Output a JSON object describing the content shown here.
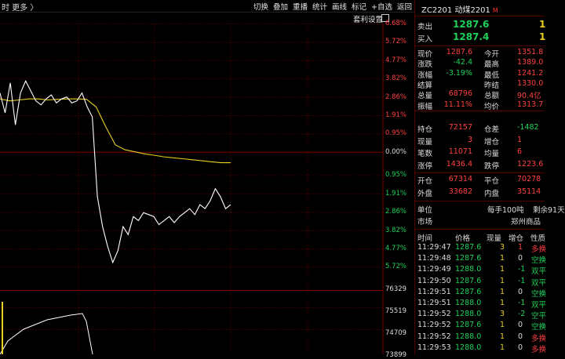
{
  "topbar": {
    "left_text": "时  更多 〉",
    "tools": [
      "切换",
      "叠加",
      "重播",
      "统计",
      "画线",
      "标记",
      "+自选",
      "返回"
    ]
  },
  "subbar": {
    "button": "套利设置"
  },
  "axis_labels": [
    "6.68%",
    "5.72%",
    "4.77%",
    "3.82%",
    "2.86%",
    "1.91%",
    "0.95%",
    "0.00%",
    "0.95%",
    "1.91%",
    "2.86%",
    "3.82%",
    "4.77%",
    "5.72%"
  ],
  "volume_labels": [
    "76329",
    "75519",
    "74709",
    "73899"
  ],
  "chart_data": {
    "type": "line",
    "series": [
      {
        "values": [
          3.2,
          2.2,
          3.7,
          1.6,
          3.2,
          3.8,
          3.3,
          2.8,
          2.6,
          2.9,
          3.1,
          2.7,
          2.9,
          3.0,
          2.7,
          2.8,
          3.2,
          2.5,
          2.0,
          -2.0,
          -3.5,
          -4.5,
          -5.3,
          -4.7,
          -3.5,
          -3.9,
          -3.0,
          -3.2,
          -2.8,
          -2.9,
          -3.0,
          -3.4,
          -3.2,
          -3.0,
          -3.3,
          -3.0,
          -2.8,
          -2.6,
          -2.9,
          -2.4,
          -2.6,
          -2.2,
          -1.6,
          -2.0,
          -2.6,
          -2.4
        ]
      },
      {
        "values": [
          2.9,
          2.8,
          2.85,
          2.9,
          2.9,
          2.85,
          2.88,
          2.9,
          2.9,
          2.88,
          2.5,
          1.5,
          0.6,
          0.35,
          0.25,
          0.15,
          0.08,
          0.0,
          -0.05,
          -0.1,
          -0.15,
          -0.2,
          -0.25,
          -0.3,
          -0.3
        ]
      }
    ],
    "ylim": [
      -6.68,
      6.68
    ]
  },
  "quote": {
    "title": "ZC2201 动煤2201",
    "title_mark": "M",
    "sell_label": "卖出",
    "sell_price": "1287.6",
    "sell_vol": "1",
    "buy_label": "买入",
    "buy_price": "1287.4",
    "buy_vol": "1",
    "rows": [
      {
        "k1": "现价",
        "v1": "1287.6",
        "k2": "今开",
        "v2": "1351.8"
      },
      {
        "k1": "涨跌",
        "v1": "-42.4",
        "k2": "最高",
        "v2": "1389.0"
      },
      {
        "k1": "涨幅",
        "v1": "-3.19%",
        "k2": "最低",
        "v2": "1241.2"
      },
      {
        "k1": "结算",
        "v1": "",
        "k2": "昨结",
        "v2": "1330.0"
      },
      {
        "k1": "总量",
        "v1": "68796",
        "k2": "总额",
        "v2": "90.4亿"
      },
      {
        "k1": "振幅",
        "v1": "11.11%",
        "k2": "均价",
        "v2": "1313.7"
      }
    ],
    "rows2": [
      {
        "k1": "持仓",
        "v1": "72157",
        "k2": "仓差",
        "v2": "-1482"
      },
      {
        "k1": "现量",
        "v1": "3",
        "k2": "增仓",
        "v2": "1"
      },
      {
        "k1": "笔数",
        "v1": "11071",
        "k2": "均量",
        "v2": "6"
      },
      {
        "k1": "涨停",
        "v1": "1436.4",
        "k2": "跌停",
        "v2": "1223.6"
      }
    ],
    "rows3": [
      {
        "k1": "开仓",
        "v1": "67314",
        "k2": "平仓",
        "v2": "70278"
      },
      {
        "k1": "外盘",
        "v1": "33682",
        "k2": "内盘",
        "v2": "35114"
      }
    ],
    "unit_label": "单位",
    "unit_value": "每手100吨",
    "remain": "剩余91天",
    "market_label": "市场",
    "market_value": "郑州商品"
  },
  "ticks": {
    "headers": [
      "时间",
      "价格",
      "现量",
      "增仓",
      "性质"
    ],
    "rows": [
      {
        "time": "11:29:47",
        "price": "1287.6",
        "vol": "3",
        "add": "1",
        "nature": "多换"
      },
      {
        "time": "11:29:48",
        "price": "1287.6",
        "vol": "1",
        "add": "0",
        "nature": "空换"
      },
      {
        "time": "11:29:49",
        "price": "1288.0",
        "vol": "1",
        "add": "-1",
        "nature": "双平"
      },
      {
        "time": "11:29:50",
        "price": "1287.6",
        "vol": "1",
        "add": "-1",
        "nature": "双平"
      },
      {
        "time": "11:29:51",
        "price": "1287.6",
        "vol": "1",
        "add": "0",
        "nature": "空换"
      },
      {
        "time": "11:29:51",
        "price": "1288.0",
        "vol": "1",
        "add": "-1",
        "nature": "双平"
      },
      {
        "time": "11:29:52",
        "price": "1288.0",
        "vol": "3",
        "add": "-2",
        "nature": "空平"
      },
      {
        "time": "11:29:52",
        "price": "1287.6",
        "vol": "1",
        "add": "0",
        "nature": "空换"
      },
      {
        "time": "11:29:52",
        "price": "1288.0",
        "vol": "1",
        "add": "0",
        "nature": "多换"
      },
      {
        "time": "11:29:53",
        "price": "1288.0",
        "vol": "1",
        "add": "0",
        "nature": "多换"
      }
    ]
  }
}
